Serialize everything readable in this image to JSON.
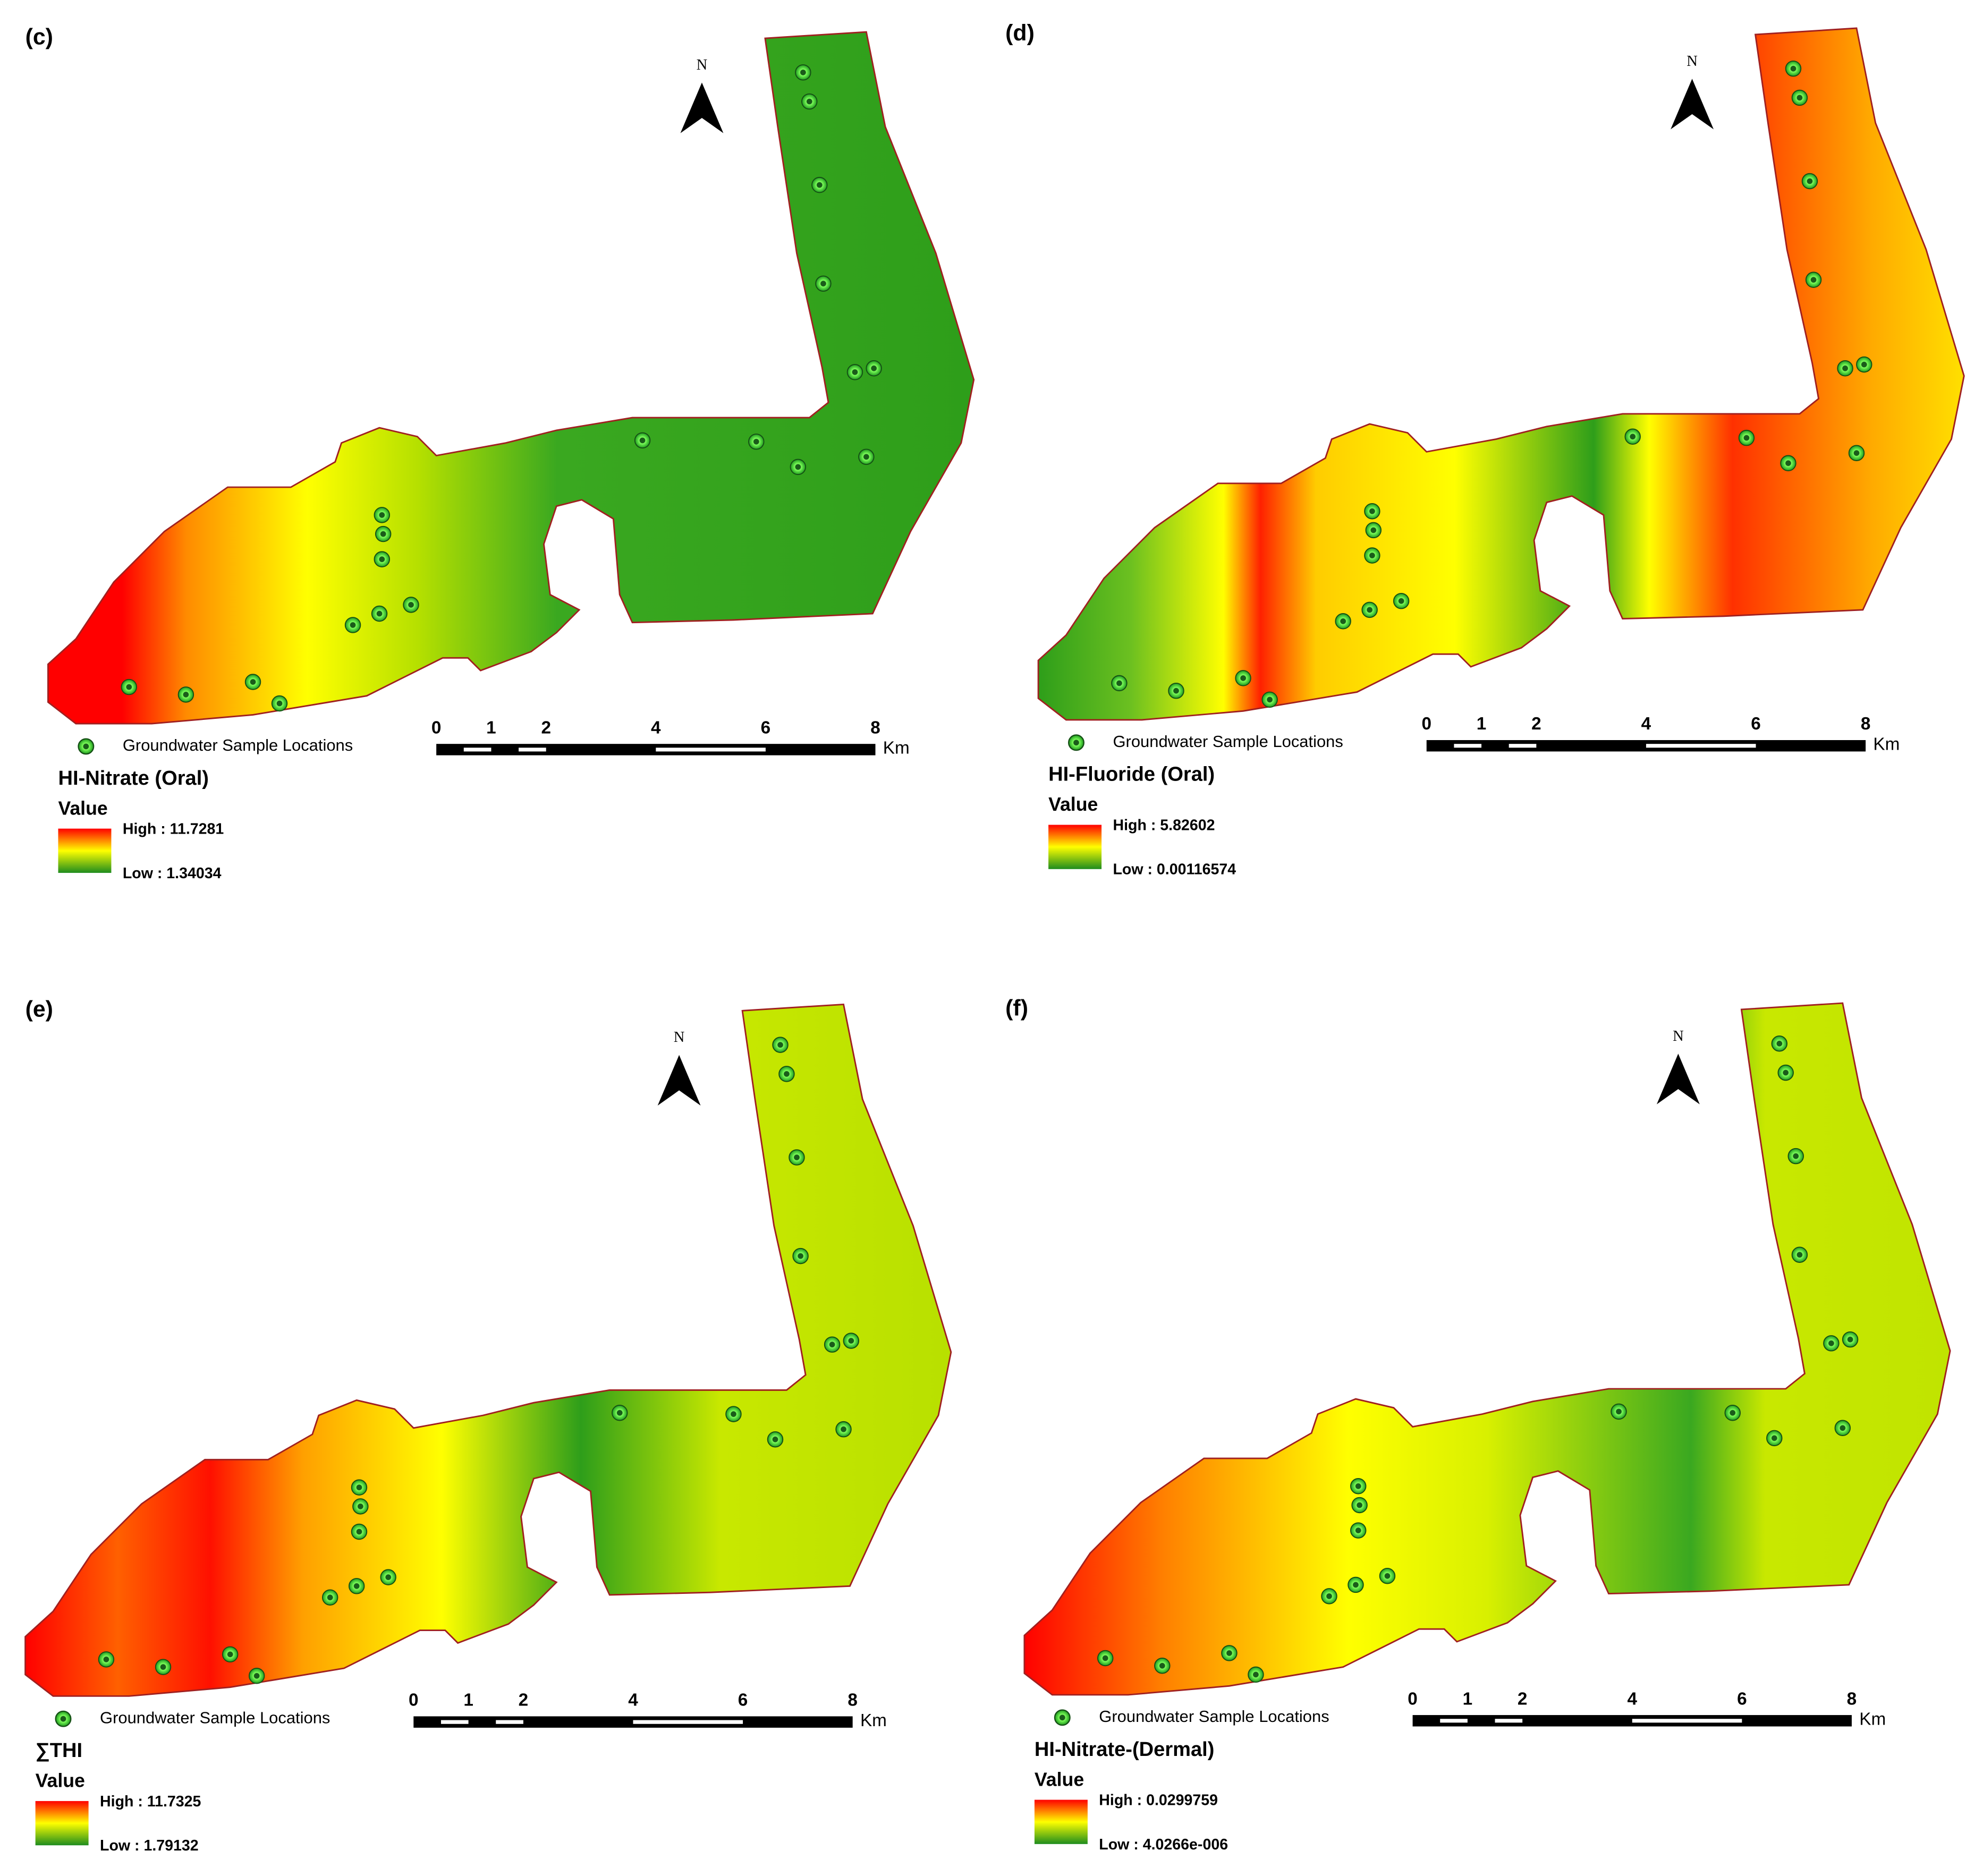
{
  "panels": [
    {
      "label": "(c)",
      "title": "HI-Nitrate (Oral)",
      "high": "High : 11.7281",
      "low": "Low : 1.34034"
    },
    {
      "label": "(d)",
      "title": "HI-Fluoride (Oral)",
      "high": "High : 5.82602",
      "low": "Low : 0.00116574"
    },
    {
      "label": "(e)",
      "title": "∑THI",
      "high": "High : 11.7325",
      "low": "Low : 1.79132"
    },
    {
      "label": "(f)",
      "title": "HI-Nitrate-(Dermal)",
      "high": "High : 0.0299759",
      "low": "Low : 4.0266e-006"
    }
  ],
  "legend_text": "Groundwater Sample Locations",
  "value_heading": "Value",
  "north": "N",
  "scale": {
    "labels": [
      "0",
      "1",
      "2",
      "4",
      "6",
      "8"
    ],
    "unit": "Km"
  }
}
